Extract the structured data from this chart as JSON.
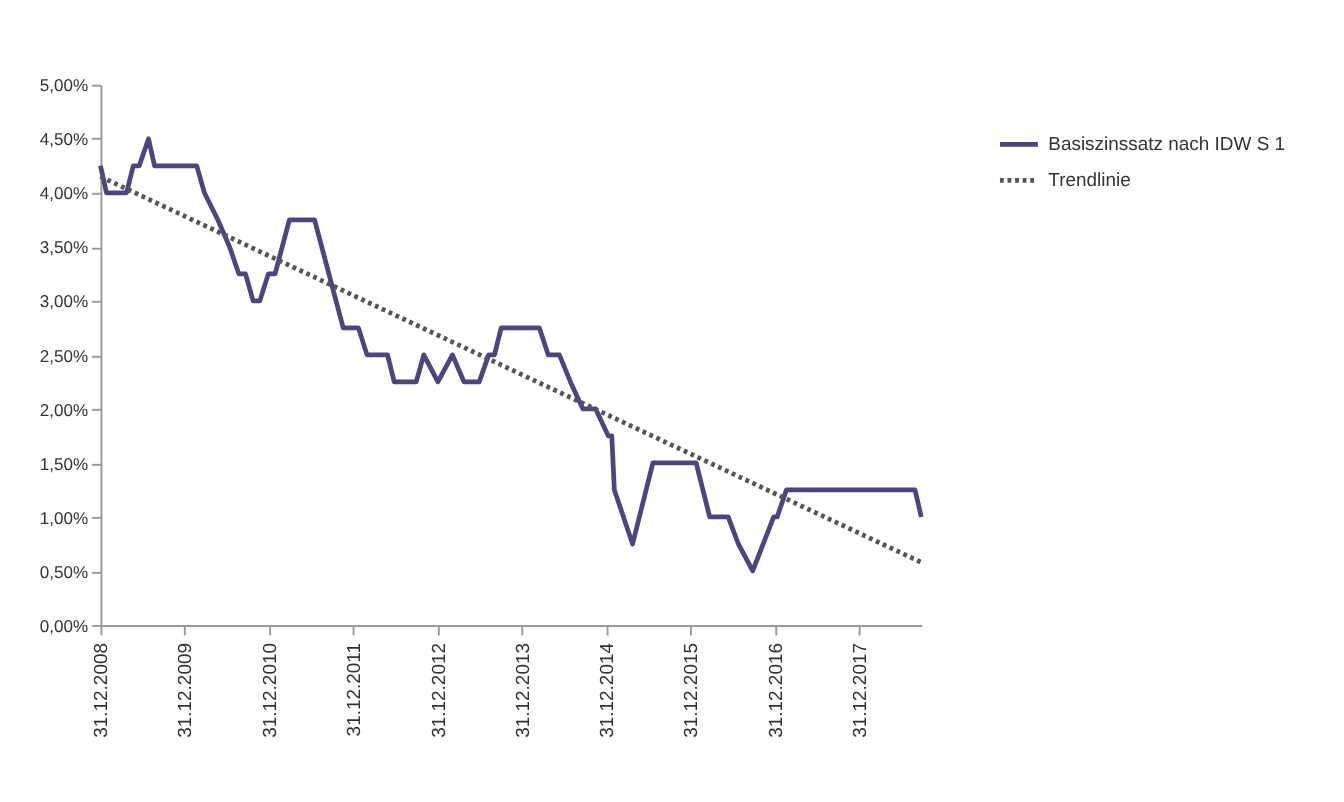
{
  "chart_data": {
    "type": "line",
    "xlim": [
      "2008-12-31",
      "2018-09-24"
    ],
    "xticks": [
      {
        "value": "2008-12-31",
        "label": "31.12.2008"
      },
      {
        "value": "2009-12-31",
        "label": "31.12.2009"
      },
      {
        "value": "2010-12-31",
        "label": "31.12.2010"
      },
      {
        "value": "2011-12-31",
        "label": "31.12.2011"
      },
      {
        "value": "2012-12-31",
        "label": "31.12.2012"
      },
      {
        "value": "2013-12-31",
        "label": "31.12.2013"
      },
      {
        "value": "2014-12-31",
        "label": "31.12.2014"
      },
      {
        "value": "2015-12-31",
        "label": "31.12.2015"
      },
      {
        "value": "2016-12-31",
        "label": "31.12.2016"
      },
      {
        "value": "2017-12-31",
        "label": "31.12.2017"
      }
    ],
    "ylim": [
      0,
      5
    ],
    "yticks": [
      {
        "value": 0,
        "label": "0,00%"
      },
      {
        "value": 0.5,
        "label": "0,50%"
      },
      {
        "value": 1,
        "label": "1,00%"
      },
      {
        "value": 1.5,
        "label": "1,50%"
      },
      {
        "value": 2,
        "label": "2,00%"
      },
      {
        "value": 2.5,
        "label": "2,50%"
      },
      {
        "value": 3,
        "label": "3,00%"
      },
      {
        "value": 3.5,
        "label": "3,50%"
      },
      {
        "value": 4,
        "label": "4,00%"
      },
      {
        "value": 4.5,
        "label": "4,50%"
      },
      {
        "value": 5,
        "label": "5,00%"
      }
    ],
    "grid": false,
    "legend": "right",
    "marker": "none",
    "series": [
      {
        "name": "Basiszinssatz nach IDW S 1",
        "color": "#4b4680",
        "line_style": "solid",
        "x": [
          "2008-12-31",
          "2009-01-26",
          "2009-04-23",
          "2009-05-22",
          "2009-06-17",
          "2009-07-27",
          "2009-08-22",
          "2010-02-21",
          "2010-03-26",
          "2010-05-23",
          "2010-07-13",
          "2010-08-22",
          "2010-09-20",
          "2010-10-23",
          "2010-11-21",
          "2010-12-28",
          "2011-01-26",
          "2011-03-29",
          "2011-07-16",
          "2011-11-17",
          "2012-01-22",
          "2012-02-28",
          "2012-05-27",
          "2012-06-25",
          "2012-09-28",
          "2012-10-31",
          "2012-12-31",
          "2013-03-04",
          "2013-04-23",
          "2013-06-28",
          "2013-08-08",
          "2013-09-02",
          "2013-10-01",
          "2014-03-15",
          "2014-04-23",
          "2014-06-10",
          "2014-07-28",
          "2014-09-20",
          "2014-11-14",
          "2015-01-08",
          "2015-01-23",
          "2015-02-03",
          "2015-04-23",
          "2015-07-20",
          "2016-01-23",
          "2016-03-22",
          "2016-06-10",
          "2016-07-24",
          "2016-09-24",
          "2016-12-24",
          "2017-01-08",
          "2017-02-17",
          "2018-08-28",
          "2018-09-24"
        ],
        "values": [
          4.25,
          4.0,
          4.0,
          4.25,
          4.25,
          4.5,
          4.25,
          4.25,
          4.0,
          3.75,
          3.5,
          3.25,
          3.25,
          3.0,
          3.0,
          3.25,
          3.25,
          3.75,
          3.75,
          2.75,
          2.75,
          2.5,
          2.5,
          2.25,
          2.25,
          2.5,
          2.25,
          2.5,
          2.25,
          2.25,
          2.5,
          2.5,
          2.75,
          2.75,
          2.5,
          2.5,
          2.25,
          2.0,
          2.0,
          1.75,
          1.75,
          1.25,
          0.75,
          1.5,
          1.5,
          1.0,
          1.0,
          0.75,
          0.5,
          1.0,
          1.0,
          1.25,
          1.25,
          1.0
        ]
      },
      {
        "name": "Trendlinie",
        "color": "#555555",
        "line_style": "dotted",
        "x": [
          "2008-12-31",
          "2018-09-24"
        ],
        "values": [
          4.15,
          0.58
        ]
      }
    ]
  }
}
